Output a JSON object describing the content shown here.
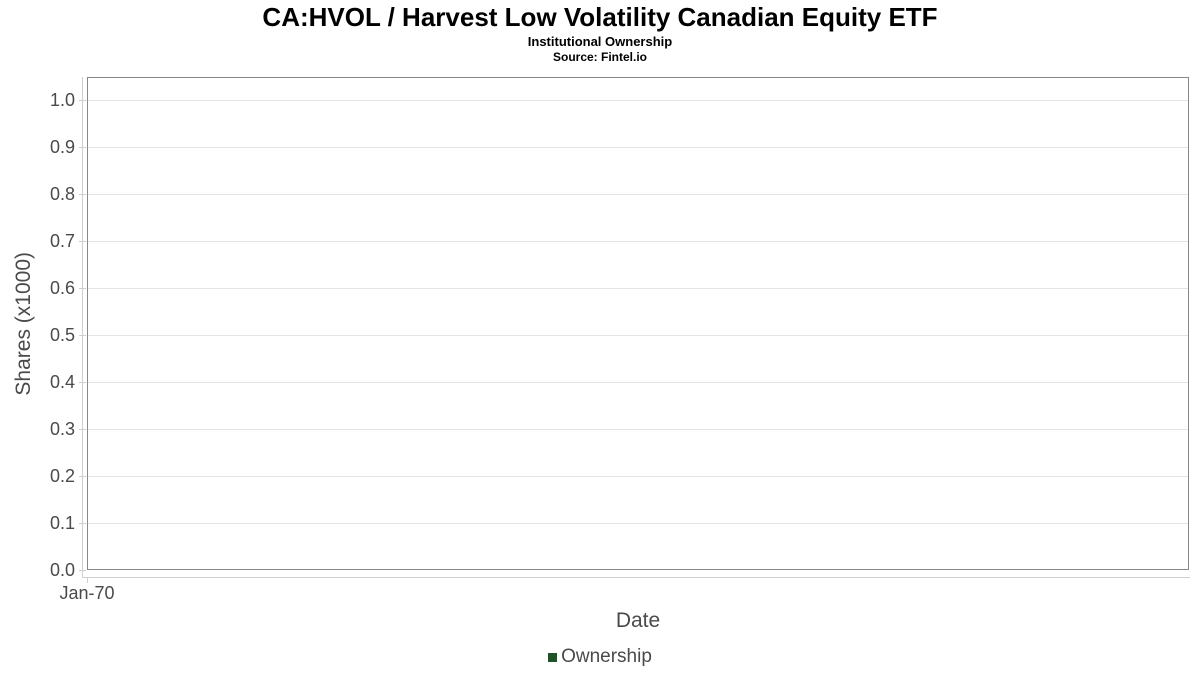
{
  "chart_data": {
    "type": "bar",
    "title": "CA:HVOL / Harvest Low Volatility Canadian Equity ETF",
    "subtitle": "Institutional Ownership",
    "source": "Source: Fintel.io",
    "xlabel": "Date",
    "ylabel": "Shares (x1000)",
    "categories": [
      "Jan-70"
    ],
    "series": [
      {
        "name": "Ownership",
        "color": "#1f5227",
        "values": []
      }
    ],
    "x_ticks": [
      "Jan-70"
    ],
    "y_ticks": [
      "0.0",
      "0.1",
      "0.2",
      "0.3",
      "0.4",
      "0.5",
      "0.6",
      "0.7",
      "0.8",
      "0.9",
      "1.0"
    ],
    "ylim": [
      0,
      1.05
    ],
    "grid": true,
    "legend_position": "bottom",
    "legend": {
      "entries": [
        {
          "label": "Ownership",
          "swatch_color": "#1f5227"
        }
      ]
    }
  },
  "colors": {
    "background": "#ffffff",
    "title": "#000000",
    "axis_text": "#4a4a4a",
    "tick_text": "#4a4a4a",
    "plot_border": "#888888",
    "axis_line": "#cfcfcf",
    "gridline": "#e4e4e4",
    "legend_swatch": "#1f5227"
  }
}
